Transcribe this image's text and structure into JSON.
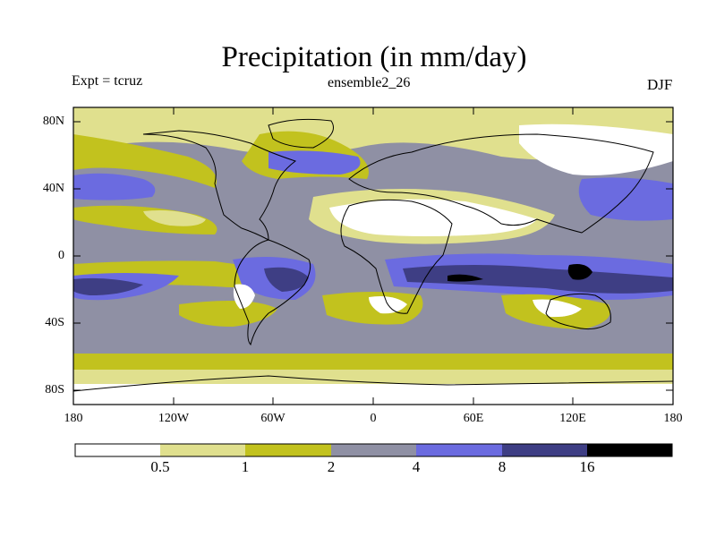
{
  "header": {
    "title": "Precipitation (in mm/day)",
    "experiment": "Expt = tcruz",
    "run": "ensemble2_26",
    "season": "DJF"
  },
  "axes": {
    "lat_labels": [
      "80N",
      "40N",
      "0",
      "40S",
      "80S"
    ],
    "lon_labels": [
      "180",
      "120W",
      "60W",
      "0",
      "60E",
      "120E",
      "180"
    ]
  },
  "colorbar": {
    "labels": [
      "0.5",
      "1",
      "2",
      "4",
      "8",
      "16"
    ],
    "colors": [
      "#ffffff",
      "#e0e08e",
      "#c2c21e",
      "#8f90a4",
      "#6b6be0",
      "#3e3e84",
      "#000000"
    ]
  },
  "map_colors": {
    "white": "#ffffff",
    "light_yellow": "#e0e08e",
    "olive": "#c2c21e",
    "gray": "#8f90a4",
    "blue": "#6b6be0",
    "dark_blue": "#3e3e84",
    "black": "#000000",
    "coast": "#000000"
  }
}
